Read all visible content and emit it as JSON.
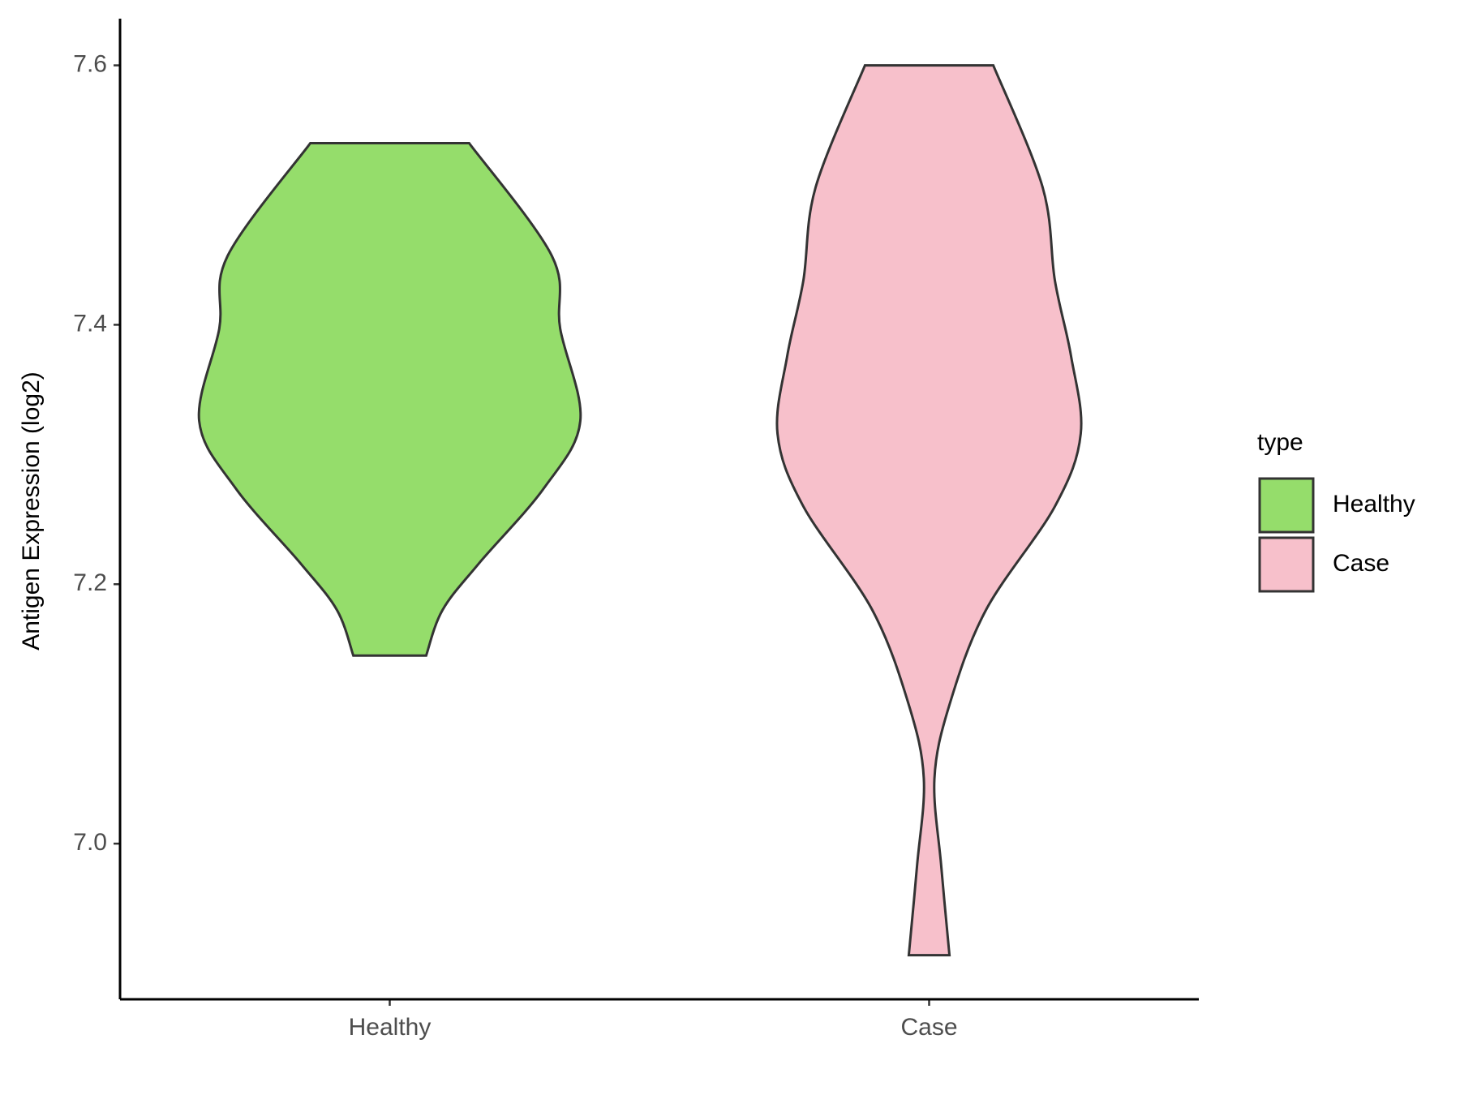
{
  "chart_data": {
    "type": "violin",
    "y_label": "Antigen Expression (log2)",
    "categories": [
      "Healthy",
      "Case"
    ],
    "legend_title": "type",
    "series": [
      {
        "name": "Healthy",
        "color": "#95dd6b",
        "values": [
          7.54,
          7.453,
          7.397,
          7.326,
          7.274,
          7.216,
          7.18,
          7.145
        ],
        "widths": [
          0.375,
          0.766,
          0.805,
          0.9,
          0.728,
          0.421,
          0.249,
          0.172
        ]
      },
      {
        "name": "Case",
        "color": "#f7c0cb",
        "values": [
          7.6,
          7.506,
          7.434,
          7.376,
          7.316,
          7.26,
          7.18,
          7.107,
          7.05,
          6.983,
          6.914
        ],
        "widths": [
          0.303,
          0.536,
          0.594,
          0.67,
          0.716,
          0.594,
          0.268,
          0.096,
          0.025,
          0.057,
          0.096
        ]
      }
    ],
    "ylim": [
      6.88,
      7.636
    ],
    "yticks": [
      {
        "value": 7.0,
        "label": "7.0"
      },
      7.2,
      7.4,
      7.6
    ]
  }
}
